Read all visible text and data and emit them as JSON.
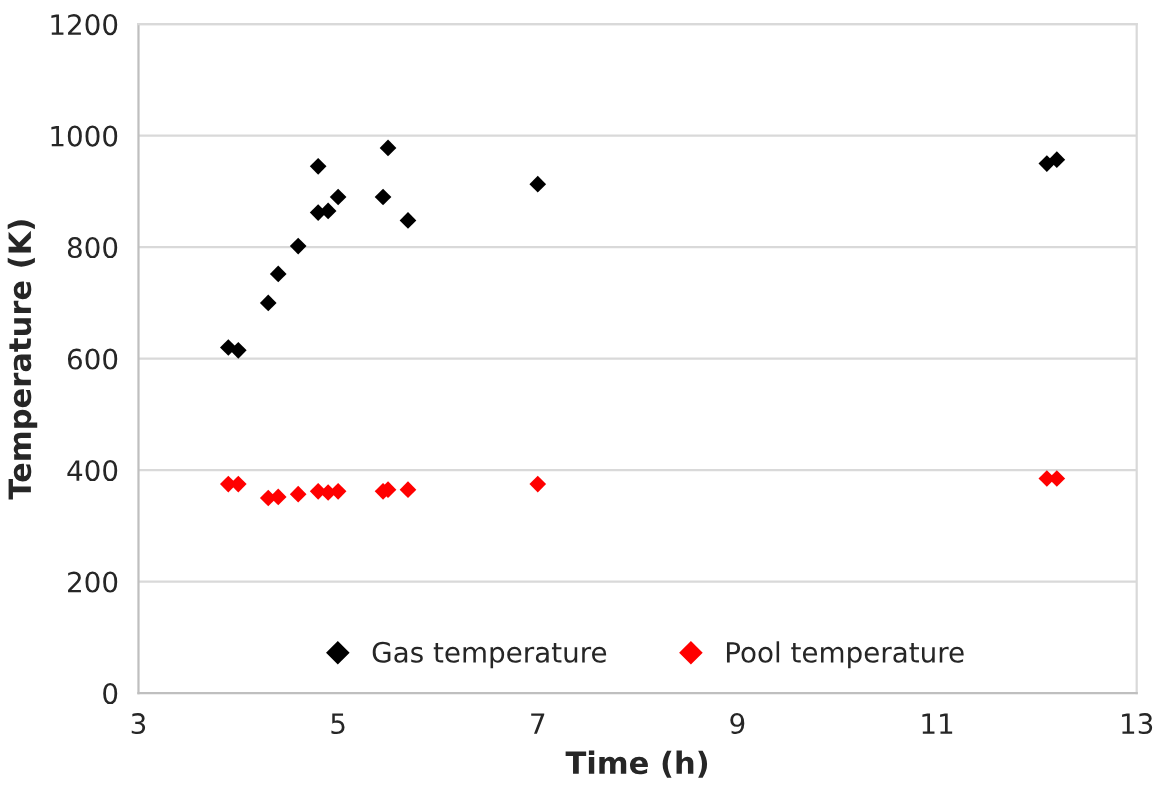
{
  "chart_data": {
    "type": "scatter",
    "xlabel": "Time (h)",
    "ylabel": "Temperature (K)",
    "xlim": [
      3,
      13
    ],
    "xticks": [
      3,
      5,
      7,
      9,
      11,
      13
    ],
    "ylim": [
      0,
      1200
    ],
    "yticks": [
      0,
      200,
      400,
      600,
      800,
      1000,
      1200
    ],
    "grid": "y",
    "legend": "bottom",
    "marker": "diamond",
    "series": [
      {
        "name": "Gas temperature",
        "color": "#000000",
        "x": [
          3.9,
          4.0,
          4.3,
          4.4,
          4.6,
          4.8,
          4.8,
          4.9,
          5.0,
          5.45,
          5.5,
          5.7,
          7.0,
          12.1,
          12.2
        ],
        "values": [
          620,
          615,
          700,
          752,
          802,
          862,
          945,
          865,
          890,
          890,
          978,
          848,
          913,
          950,
          957
        ]
      },
      {
        "name": "Pool temperature",
        "color": "#ff0000",
        "x": [
          3.9,
          4.0,
          4.3,
          4.4,
          4.6,
          4.8,
          4.9,
          5.0,
          5.45,
          5.5,
          5.7,
          7.0,
          12.1,
          12.2
        ],
        "values": [
          375,
          375,
          350,
          352,
          357,
          362,
          360,
          362,
          362,
          365,
          365,
          375,
          385,
          385
        ]
      }
    ]
  }
}
